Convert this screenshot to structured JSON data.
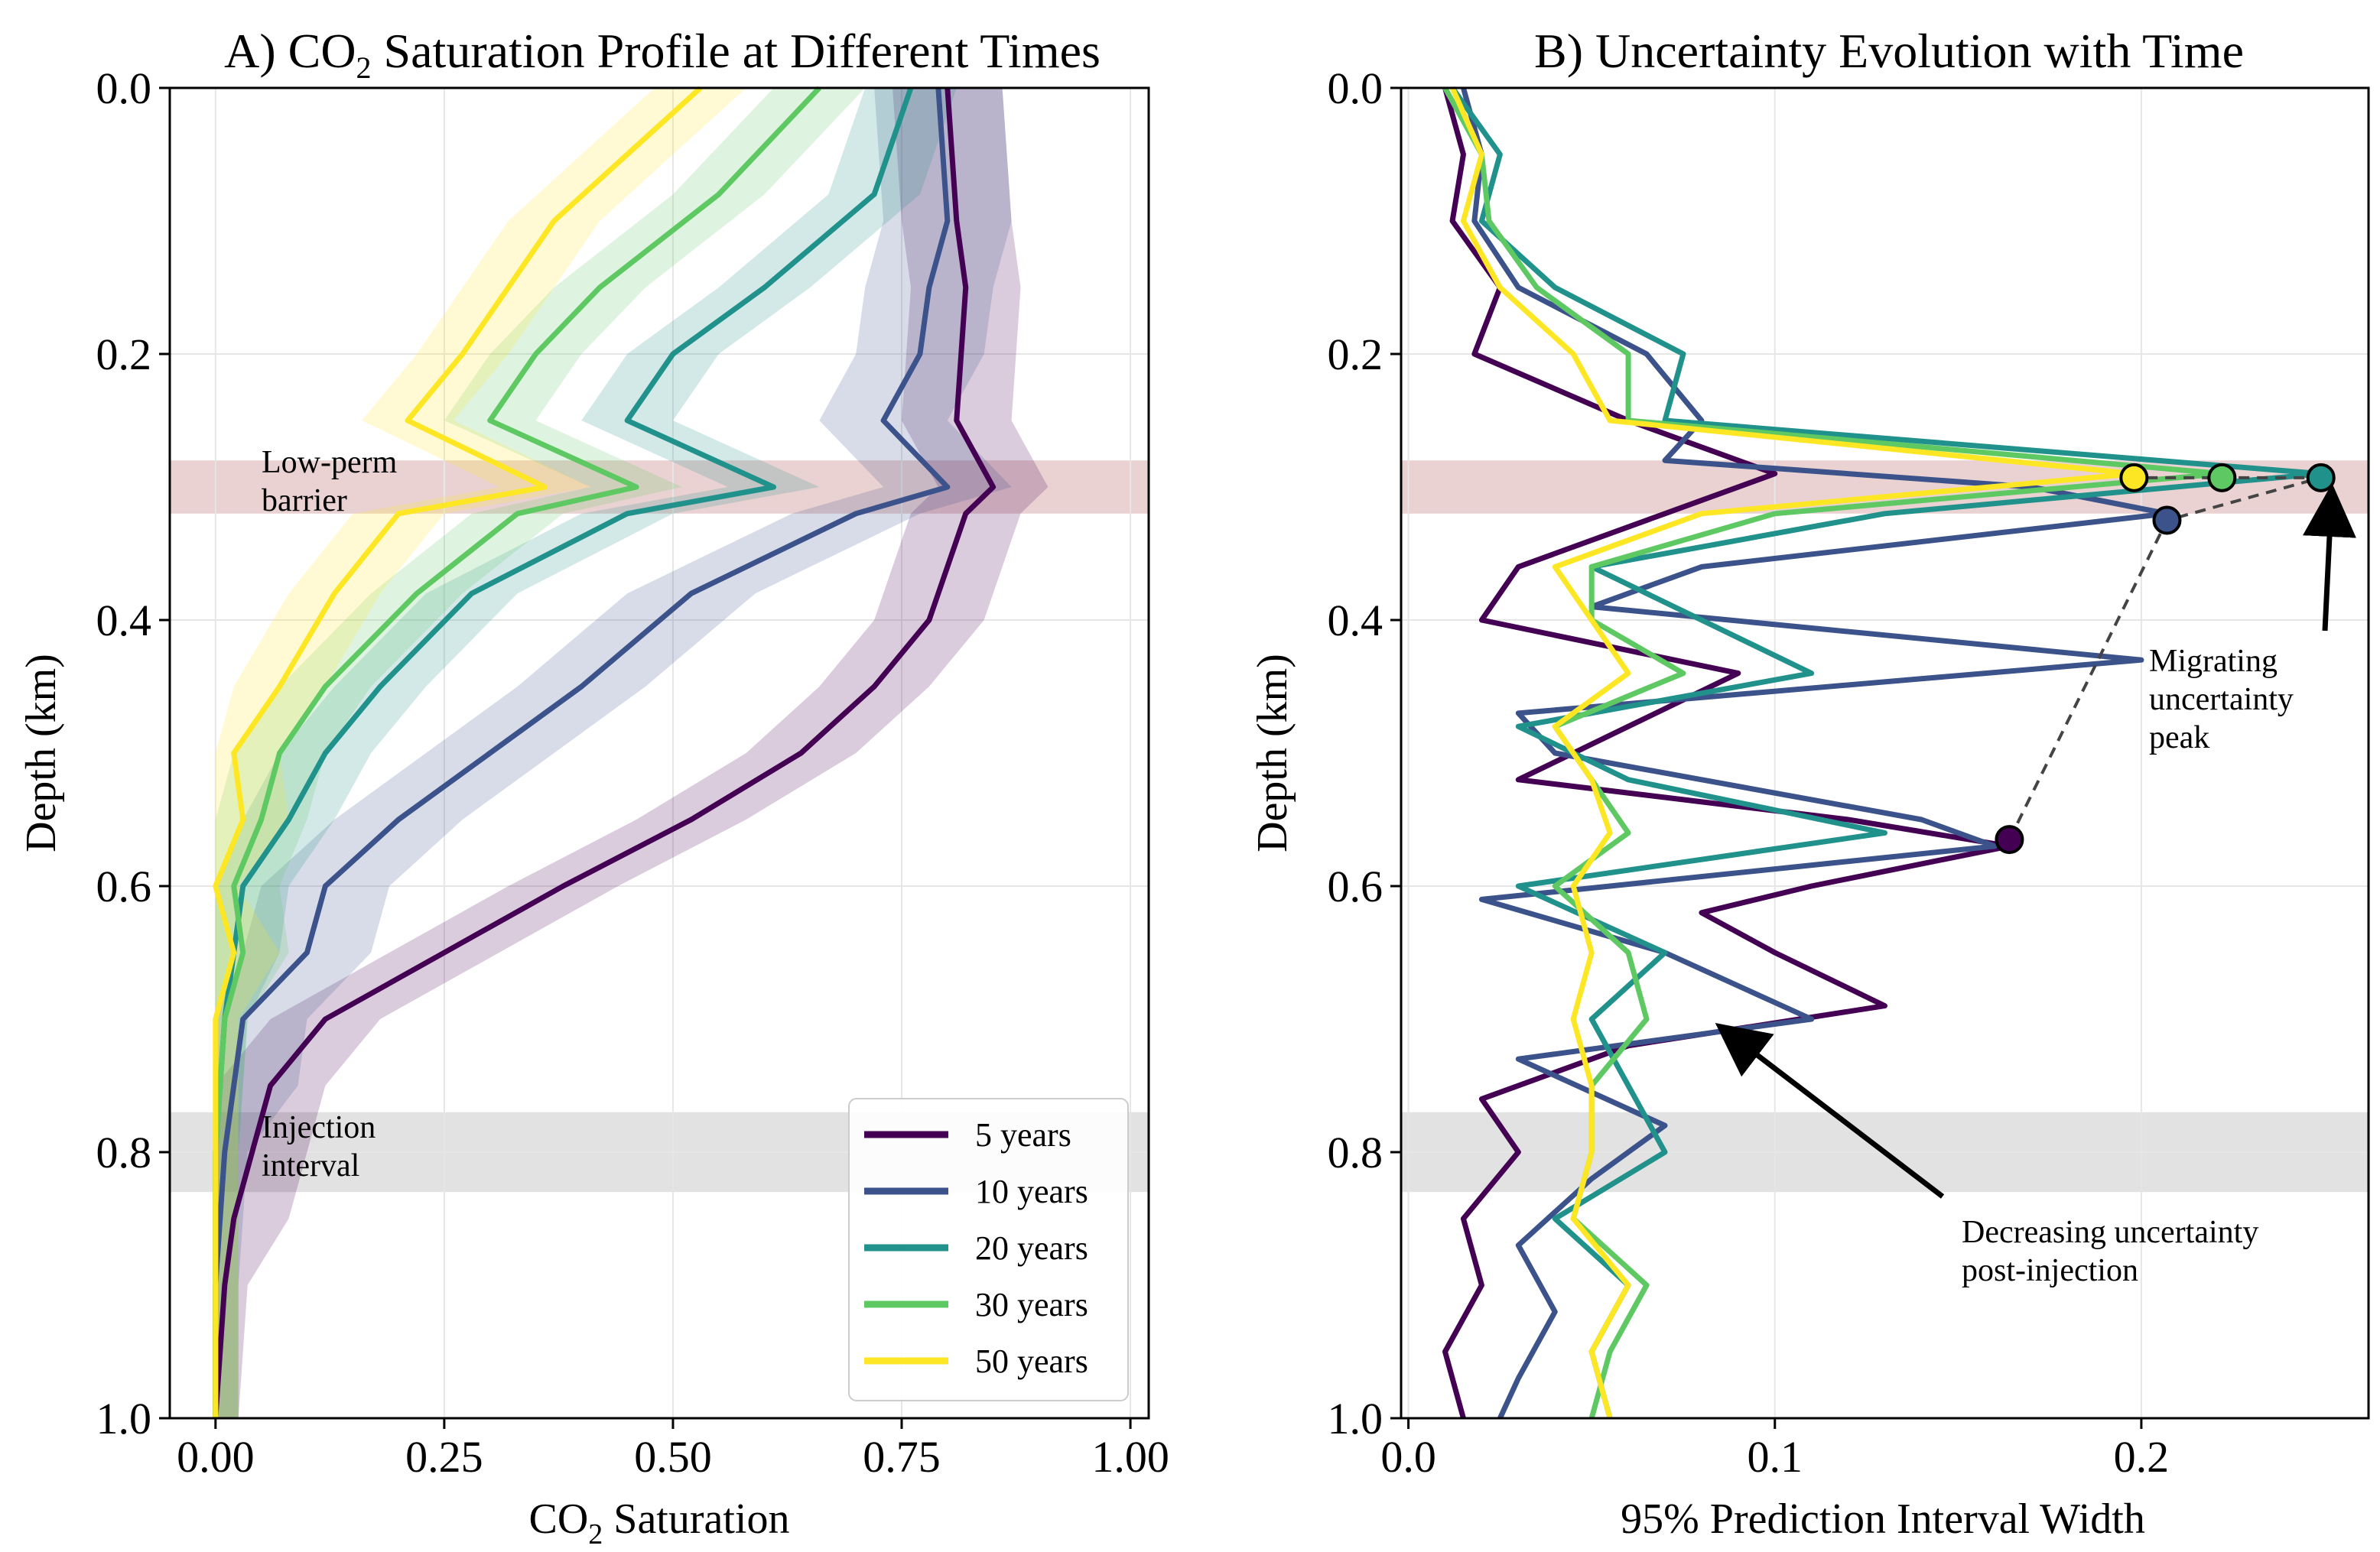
{
  "chart_data": [
    {
      "type": "line",
      "panel": "A",
      "title_prefix": "A) CO",
      "title_sub": "2",
      "title_suffix": " Saturation Profile at Different Times",
      "xlabel_prefix": "CO",
      "xlabel_sub": "2",
      "xlabel_suffix": " Saturation",
      "ylabel": "Depth (km)",
      "xlim": [
        -0.05,
        1.02
      ],
      "ylim": [
        1.0,
        0.0
      ],
      "xticks": [
        0.0,
        0.25,
        0.5,
        0.75,
        1.0
      ],
      "xtick_labels": [
        "0.00",
        "0.25",
        "0.50",
        "0.75",
        "1.00"
      ],
      "yticks": [
        0.0,
        0.2,
        0.4,
        0.6,
        0.8,
        1.0
      ],
      "ytick_labels": [
        "0.0",
        "0.2",
        "0.4",
        "0.6",
        "0.8",
        "1.0"
      ],
      "grid": true,
      "bands": [
        {
          "name": "low-perm-barrier",
          "y0": 0.28,
          "y1": 0.32,
          "color": "#c98a8a",
          "label_line1": "Low-perm",
          "label_line2": "barrier"
        },
        {
          "name": "injection-interval",
          "y0": 0.77,
          "y1": 0.83,
          "color": "#b3b3b3",
          "label_line1": "Injection",
          "label_line2": "interval"
        }
      ],
      "legend_position": "lower-right",
      "series": [
        {
          "name": "5 years",
          "color": "#440154",
          "depth": [
            0.0,
            0.1,
            0.15,
            0.25,
            0.3,
            0.32,
            0.4,
            0.45,
            0.5,
            0.55,
            0.6,
            0.65,
            0.7,
            0.75,
            0.8,
            0.85,
            0.9,
            1.0
          ],
          "sat": [
            0.8,
            0.81,
            0.82,
            0.81,
            0.85,
            0.82,
            0.78,
            0.72,
            0.64,
            0.52,
            0.38,
            0.25,
            0.12,
            0.06,
            0.04,
            0.02,
            0.01,
            0.0
          ],
          "band": 0.06
        },
        {
          "name": "10 years",
          "color": "#3b528b",
          "depth": [
            0.0,
            0.1,
            0.15,
            0.2,
            0.25,
            0.3,
            0.32,
            0.38,
            0.45,
            0.5,
            0.55,
            0.6,
            0.65,
            0.7,
            0.75,
            0.8,
            0.9,
            1.0
          ],
          "sat": [
            0.79,
            0.8,
            0.78,
            0.77,
            0.73,
            0.8,
            0.7,
            0.52,
            0.4,
            0.3,
            0.2,
            0.12,
            0.1,
            0.03,
            0.02,
            0.01,
            0.0,
            0.0
          ],
          "band": 0.07
        },
        {
          "name": "20 years",
          "color": "#21918c",
          "depth": [
            0.0,
            0.08,
            0.15,
            0.2,
            0.25,
            0.3,
            0.32,
            0.38,
            0.45,
            0.5,
            0.55,
            0.6,
            0.65,
            0.7,
            0.8,
            0.9,
            1.0
          ],
          "sat": [
            0.76,
            0.72,
            0.6,
            0.5,
            0.45,
            0.61,
            0.45,
            0.28,
            0.18,
            0.12,
            0.08,
            0.03,
            0.02,
            0.01,
            0.0,
            0.0,
            0.0
          ],
          "band": 0.05
        },
        {
          "name": "30 years",
          "color": "#5ec962",
          "depth": [
            0.0,
            0.08,
            0.15,
            0.2,
            0.25,
            0.3,
            0.32,
            0.38,
            0.45,
            0.5,
            0.55,
            0.6,
            0.65,
            0.7,
            0.8,
            0.9,
            1.0
          ],
          "sat": [
            0.66,
            0.55,
            0.42,
            0.35,
            0.3,
            0.46,
            0.33,
            0.22,
            0.12,
            0.07,
            0.05,
            0.02,
            0.03,
            0.01,
            0.0,
            0.0,
            0.0
          ],
          "band": 0.05
        },
        {
          "name": "50 years",
          "color": "#fde725",
          "depth": [
            0.0,
            0.05,
            0.1,
            0.15,
            0.2,
            0.25,
            0.3,
            0.32,
            0.38,
            0.45,
            0.5,
            0.55,
            0.6,
            0.65,
            0.7,
            0.8,
            0.9,
            1.0
          ],
          "sat": [
            0.53,
            0.45,
            0.37,
            0.32,
            0.27,
            0.21,
            0.36,
            0.2,
            0.13,
            0.07,
            0.02,
            0.03,
            0.0,
            0.02,
            0.0,
            0.0,
            0.0,
            0.0
          ],
          "band": 0.05
        }
      ]
    },
    {
      "type": "line",
      "panel": "B",
      "title": "B) Uncertainty Evolution with Time",
      "xlabel": "95% Prediction Interval Width",
      "ylabel": "Depth (km)",
      "xlim": [
        -0.002,
        0.262
      ],
      "ylim": [
        1.0,
        0.0
      ],
      "xticks": [
        0.0,
        0.1,
        0.2
      ],
      "xtick_labels": [
        "0.0",
        "0.1",
        "0.2"
      ],
      "yticks": [
        0.0,
        0.2,
        0.4,
        0.6,
        0.8,
        1.0
      ],
      "ytick_labels": [
        "0.0",
        "0.2",
        "0.4",
        "0.6",
        "0.8",
        "1.0"
      ],
      "grid": true,
      "bands": [
        {
          "name": "low-perm-barrier",
          "y0": 0.28,
          "y1": 0.32,
          "color": "#c98a8a"
        },
        {
          "name": "injection-interval",
          "y0": 0.77,
          "y1": 0.83,
          "color": "#b3b3b3"
        }
      ],
      "series": [
        {
          "name": "5 years",
          "color": "#440154",
          "depth": [
            0.0,
            0.05,
            0.1,
            0.15,
            0.2,
            0.25,
            0.29,
            0.32,
            0.36,
            0.4,
            0.44,
            0.48,
            0.52,
            0.55,
            0.57,
            0.6,
            0.62,
            0.65,
            0.69,
            0.72,
            0.76,
            0.8,
            0.85,
            0.9,
            0.95,
            1.0
          ],
          "width": [
            0.01,
            0.015,
            0.012,
            0.025,
            0.018,
            0.06,
            0.1,
            0.07,
            0.03,
            0.02,
            0.09,
            0.06,
            0.03,
            0.12,
            0.164,
            0.11,
            0.08,
            0.1,
            0.13,
            0.06,
            0.02,
            0.03,
            0.015,
            0.02,
            0.01,
            0.015
          ],
          "peak": 0.164,
          "peak_depth": 0.565
        },
        {
          "name": "10 years",
          "color": "#3b528b",
          "depth": [
            0.0,
            0.05,
            0.1,
            0.15,
            0.2,
            0.25,
            0.28,
            0.3,
            0.32,
            0.36,
            0.39,
            0.43,
            0.47,
            0.5,
            0.55,
            0.57,
            0.61,
            0.65,
            0.7,
            0.73,
            0.78,
            0.82,
            0.87,
            0.92,
            0.97,
            1.0
          ],
          "width": [
            0.015,
            0.02,
            0.018,
            0.03,
            0.065,
            0.08,
            0.07,
            0.17,
            0.207,
            0.08,
            0.05,
            0.2,
            0.03,
            0.04,
            0.14,
            0.16,
            0.02,
            0.07,
            0.11,
            0.03,
            0.07,
            0.05,
            0.03,
            0.04,
            0.03,
            0.025
          ],
          "peak": 0.207,
          "peak_depth": 0.325
        },
        {
          "name": "20 years",
          "color": "#21918c",
          "depth": [
            0.0,
            0.05,
            0.1,
            0.15,
            0.2,
            0.25,
            0.29,
            0.32,
            0.36,
            0.4,
            0.44,
            0.48,
            0.52,
            0.56,
            0.6,
            0.65,
            0.7,
            0.75,
            0.8,
            0.85,
            0.9,
            0.95,
            1.0
          ],
          "width": [
            0.012,
            0.025,
            0.02,
            0.04,
            0.075,
            0.07,
            0.249,
            0.13,
            0.05,
            0.08,
            0.11,
            0.03,
            0.06,
            0.13,
            0.03,
            0.07,
            0.05,
            0.06,
            0.07,
            0.04,
            0.06,
            0.05,
            0.055
          ],
          "peak": 0.249,
          "peak_depth": 0.293
        },
        {
          "name": "30 years",
          "color": "#5ec962",
          "depth": [
            0.0,
            0.05,
            0.1,
            0.15,
            0.2,
            0.25,
            0.29,
            0.32,
            0.36,
            0.4,
            0.44,
            0.48,
            0.52,
            0.56,
            0.6,
            0.65,
            0.7,
            0.75,
            0.8,
            0.85,
            0.9,
            0.95,
            1.0
          ],
          "width": [
            0.01,
            0.02,
            0.022,
            0.035,
            0.06,
            0.06,
            0.222,
            0.1,
            0.05,
            0.05,
            0.075,
            0.04,
            0.05,
            0.06,
            0.04,
            0.06,
            0.065,
            0.05,
            0.05,
            0.045,
            0.065,
            0.055,
            0.05
          ],
          "peak": 0.222,
          "peak_depth": 0.293
        },
        {
          "name": "50 years",
          "color": "#fde725",
          "depth": [
            0.0,
            0.05,
            0.1,
            0.15,
            0.2,
            0.25,
            0.29,
            0.32,
            0.36,
            0.4,
            0.44,
            0.48,
            0.52,
            0.56,
            0.6,
            0.65,
            0.7,
            0.75,
            0.8,
            0.85,
            0.9,
            0.95,
            1.0
          ],
          "width": [
            0.012,
            0.02,
            0.015,
            0.025,
            0.045,
            0.055,
            0.198,
            0.08,
            0.04,
            0.05,
            0.06,
            0.04,
            0.05,
            0.055,
            0.045,
            0.05,
            0.045,
            0.05,
            0.05,
            0.045,
            0.06,
            0.05,
            0.055
          ],
          "peak": 0.198,
          "peak_depth": 0.293
        }
      ],
      "annotations": [
        {
          "name": "migrating-peak",
          "line1": "Migrating",
          "line2": "uncertainty",
          "line3": "peak"
        },
        {
          "name": "decreasing",
          "line1": "Decreasing uncertainty",
          "line2": "post-injection"
        }
      ]
    }
  ]
}
